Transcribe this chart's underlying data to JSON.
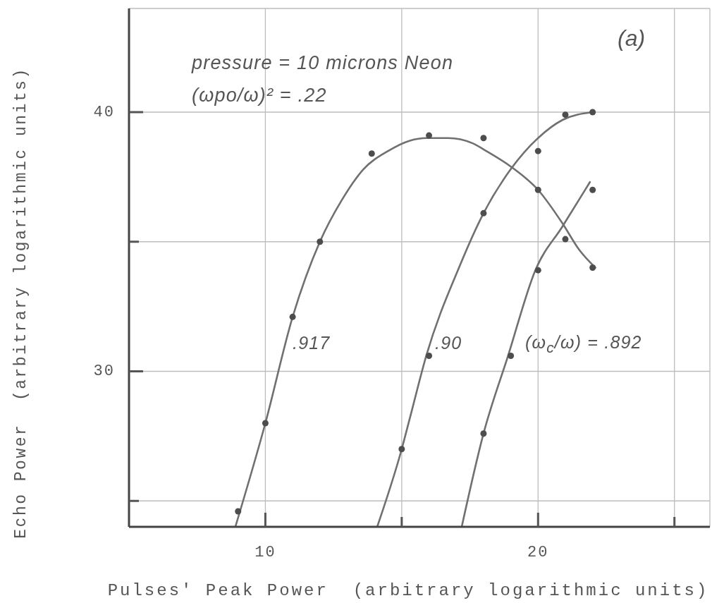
{
  "chart_data": {
    "type": "scatter",
    "title": "(a)",
    "xlabel": "Pulses' Peak Power  (arbitrary logarithmic units)",
    "ylabel": "Echo Power  (arbitrary logarithmic units)",
    "annotations": [
      "pressure = 10 microns Neon",
      "(ωpo/ω)² = .22",
      ".917",
      ".90",
      "(ω$_{c}$/ω) = .892"
    ],
    "xlim": [
      5,
      26.3
    ],
    "xticks": [
      10,
      {
        "value": 15,
        "label": null
      },
      20,
      {
        "value": 25,
        "label": null
      }
    ],
    "ylim": [
      24,
      44
    ],
    "yticks": [
      {
        "value": 25,
        "label": null
      },
      30,
      {
        "value": 35,
        "label": null
      },
      40
    ],
    "grid": true,
    "series": [
      {
        "color": "#4d4d4d",
        "marker": "circle",
        "x": [
          9,
          10,
          11,
          12,
          13.9,
          16,
          18,
          20,
          21,
          22
        ],
        "values": [
          24.6,
          28.0,
          32.1,
          35.0,
          38.4,
          39.1,
          39.0,
          37.0,
          35.1,
          34.0
        ]
      },
      {
        "type": "line",
        "marker": "none",
        "color": "#707070",
        "x": [
          8.9,
          10.0,
          11.0,
          12.0,
          12.8,
          13.6,
          14.5,
          15.3,
          15.9,
          16.7,
          17.6,
          18.1,
          19.0,
          20.0,
          20.9,
          21.5,
          22.1
        ],
        "values": [
          24.0,
          28.0,
          32.1,
          35.0,
          36.6,
          37.8,
          38.5,
          38.9,
          39.0,
          39.0,
          38.8,
          38.5,
          37.9,
          37.0,
          35.7,
          34.7,
          34.0
        ]
      },
      {
        "color": "#4d4d4d",
        "marker": "circle",
        "x": [
          15,
          16,
          18,
          20,
          21,
          22
        ],
        "values": [
          27.0,
          30.6,
          36.1,
          38.5,
          39.9,
          40.0
        ]
      },
      {
        "type": "line",
        "marker": "none",
        "color": "#707070",
        "x": [
          14.1,
          15.0,
          15.3,
          15.9,
          17.1,
          18.0,
          19.0,
          20.0,
          20.9,
          22.0
        ],
        "values": [
          24.0,
          27.0,
          28.2,
          30.6,
          34.0,
          36.1,
          37.8,
          39.0,
          39.7,
          40.0
        ]
      },
      {
        "color": "#4d4d4d",
        "marker": "circle",
        "x": [
          18,
          19,
          20,
          22
        ],
        "values": [
          27.6,
          30.6,
          33.9,
          37.0
        ]
      },
      {
        "type": "line",
        "marker": "none",
        "color": "#707070",
        "x": [
          17.2,
          18.0,
          18.9,
          19.9,
          20.9,
          21.9
        ],
        "values": [
          24.0,
          27.6,
          30.6,
          33.9,
          35.6,
          37.3
        ]
      }
    ]
  }
}
